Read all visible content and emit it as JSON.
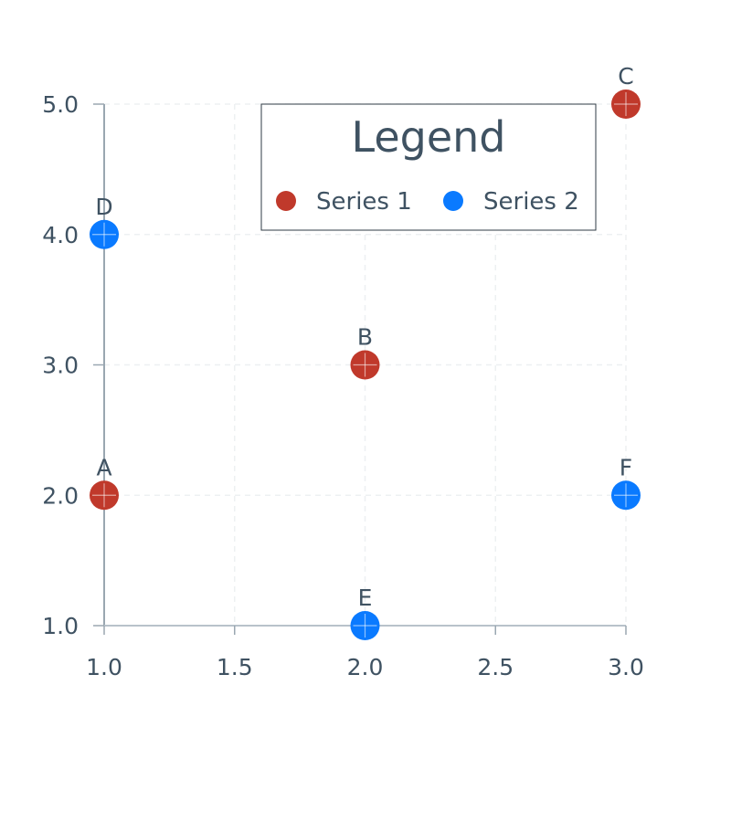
{
  "chart_data": {
    "type": "scatter",
    "xlim": [
      1.0,
      3.0
    ],
    "ylim": [
      1.0,
      5.0
    ],
    "x_ticks": [
      "1.0",
      "1.5",
      "2.0",
      "2.5",
      "3.0"
    ],
    "y_ticks": [
      "1.0",
      "2.0",
      "3.0",
      "4.0",
      "5.0"
    ],
    "grid": true,
    "legend": {
      "title": "Legend",
      "placement": "top-center"
    },
    "series": [
      {
        "name": "Series 1",
        "color": "#c0392b",
        "points": [
          {
            "x": 1.0,
            "y": 2.0,
            "label": "A"
          },
          {
            "x": 2.0,
            "y": 3.0,
            "label": "B"
          },
          {
            "x": 3.0,
            "y": 5.0,
            "label": "C"
          }
        ]
      },
      {
        "name": "Series 2",
        "color": "#0a7aff",
        "points": [
          {
            "x": 1.0,
            "y": 4.0,
            "label": "D"
          },
          {
            "x": 2.0,
            "y": 1.0,
            "label": "E"
          },
          {
            "x": 3.0,
            "y": 2.0,
            "label": "F"
          }
        ]
      }
    ]
  }
}
